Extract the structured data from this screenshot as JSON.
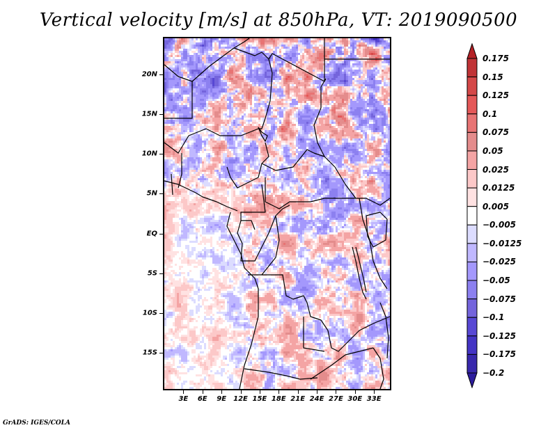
{
  "title": "Vertical velocity [m/s] at 850hPa, VT: 2019090500",
  "footer": "GrADS: IGES/COLA",
  "map": {
    "variable": "Vertical velocity",
    "units": "m/s",
    "level": "850hPa",
    "valid_time": "2019090500",
    "region": "Central Africa",
    "lat_range": [
      -19.5,
      24.5
    ],
    "lon_range": [
      0,
      35.5
    ],
    "lat_labels": [
      {
        "lat": 20,
        "label": "20N"
      },
      {
        "lat": 15,
        "label": "15N"
      },
      {
        "lat": 10,
        "label": "10N"
      },
      {
        "lat": 5,
        "label": "5N"
      },
      {
        "lat": 0,
        "label": "EQ"
      },
      {
        "lat": -5,
        "label": "5S"
      },
      {
        "lat": -10,
        "label": "10S"
      },
      {
        "lat": -15,
        "label": "15S"
      }
    ],
    "lon_labels": [
      {
        "lon": 3,
        "label": "3E"
      },
      {
        "lon": 6,
        "label": "6E"
      },
      {
        "lon": 9,
        "label": "9E"
      },
      {
        "lon": 12,
        "label": "12E"
      },
      {
        "lon": 15,
        "label": "15E"
      },
      {
        "lon": 18,
        "label": "18E"
      },
      {
        "lon": 21,
        "label": "21E"
      },
      {
        "lon": 24,
        "label": "24E"
      },
      {
        "lon": 27,
        "label": "27E"
      },
      {
        "lon": 30,
        "label": "30E"
      },
      {
        "lon": 33,
        "label": "33E"
      }
    ]
  },
  "colorbar": {
    "orientation": "vertical",
    "extend": "both",
    "levels": [
      {
        "label": "0.175",
        "value": 0.175
      },
      {
        "label": "0.15",
        "value": 0.15
      },
      {
        "label": "0.125",
        "value": 0.125
      },
      {
        "label": "0.1",
        "value": 0.1
      },
      {
        "label": "0.075",
        "value": 0.075
      },
      {
        "label": "0.05",
        "value": 0.05
      },
      {
        "label": "0.025",
        "value": 0.025
      },
      {
        "label": "0.0125",
        "value": 0.0125
      },
      {
        "label": "0.005",
        "value": 0.005
      },
      {
        "label": "−0.005",
        "value": -0.005
      },
      {
        "label": "−0.0125",
        "value": -0.0125
      },
      {
        "label": "−0.025",
        "value": -0.025
      },
      {
        "label": "−0.05",
        "value": -0.05
      },
      {
        "label": "−0.075",
        "value": -0.075
      },
      {
        "label": "−0.1",
        "value": -0.1
      },
      {
        "label": "−0.125",
        "value": -0.125
      },
      {
        "label": "−0.175",
        "value": -0.175
      },
      {
        "label": "−0.2",
        "value": -0.2
      }
    ],
    "colors": [
      "#b42126",
      "#c03336",
      "#d44848",
      "#e45858",
      "#e87474",
      "#e48c8c",
      "#f4a4a4",
      "#fcc8c8",
      "#ffe2e2",
      "#ffffff",
      "#dcdcff",
      "#c0b8ff",
      "#a498fc",
      "#8c80f0",
      "#7464dc",
      "#5848d4",
      "#4434c4",
      "#3828ac",
      "#2c1c9c"
    ]
  }
}
